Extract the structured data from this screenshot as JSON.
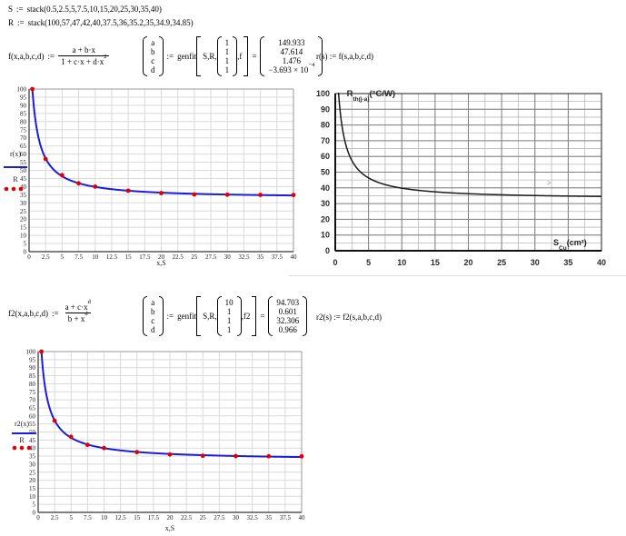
{
  "math": {
    "assign": ":=",
    "equals": "=",
    "s_def": {
      "lhs": "S",
      "rhs": "stack(0.5,2.5,5,7.5,10,15,20,25,30,35,40)"
    },
    "r_def": {
      "lhs": "R",
      "rhs": "stack(100,57,47,42,40,37.5,36,35.2,35,34.9,34.85)"
    },
    "f_def": {
      "lhs": "f(x,a,b,c,d)",
      "num": "a + b·x",
      "den_main": "1 + c·x + d·x",
      "den_sup": "2"
    },
    "fit1": {
      "vars": [
        "a",
        "b",
        "c",
        "d"
      ],
      "fn": "genfit",
      "args_pre": "S,R,",
      "guess": [
        "1",
        "1",
        "1",
        "1"
      ],
      "args_post": ",f",
      "result": [
        "149.933",
        "47.614",
        "1.476"
      ],
      "result_sci": {
        "m": "−3.693 × 10",
        "e": "−4"
      }
    },
    "rs_def": "r(s) := f(s,a,b,c,d)",
    "f2_def": {
      "lhs": "f2(x,a,b,c,d)",
      "num_main": "a + c·x",
      "num_sup": "d",
      "den_main": "b + x",
      "den_sup": "d"
    },
    "fit2": {
      "vars": [
        "a",
        "b",
        "c",
        "d"
      ],
      "fn": "genfit",
      "args_pre": "S,R,",
      "guess": [
        "10",
        "1",
        "1",
        "1"
      ],
      "args_post": ",f2",
      "result": [
        "94.703",
        "0.601",
        "32.306",
        "0.966"
      ]
    },
    "r2s_def": "r2(s) := f2(s,a,b,c,d)"
  },
  "chart_data": [
    {
      "id": "fit-plot-1",
      "type": "line+scatter",
      "x": [
        0.5,
        2.5,
        5,
        7.5,
        10,
        15,
        20,
        25,
        30,
        35,
        40
      ],
      "scatter_y": [
        100,
        57,
        47,
        42,
        40,
        37.5,
        36,
        35.2,
        35,
        34.9,
        34.85
      ],
      "curve": {
        "kind": "rational_quad",
        "a": 149.933,
        "b": 47.614,
        "c": 1.476,
        "d": -0.0003693,
        "formula": "r(x) = (a + b·x)/(1 + c·x + d·x²)"
      },
      "legend": [
        "r(x)",
        "R"
      ],
      "xlabel": "x,S",
      "xlim": [
        0,
        40
      ],
      "ylim": [
        0,
        100
      ],
      "x_tick_step": 2.5,
      "y_tick_step": 5,
      "grid": true,
      "line_color": "#1c1ce0",
      "marker_color": "#e00000"
    },
    {
      "id": "datasheet-plot",
      "type": "line",
      "title": {
        "main": "R",
        "sub": "th(j-a)",
        "unit": "(°C/W)"
      },
      "xlabel": {
        "main": "S",
        "sub": "Cu",
        "unit": "(cm²)"
      },
      "curve": {
        "kind": "rational_quad",
        "a": 149.933,
        "b": 47.614,
        "c": 1.476,
        "d": -0.0003693
      },
      "xlim": [
        0,
        40
      ],
      "ylim": [
        0,
        100
      ],
      "x_label_step": 5,
      "y_label_step": 10,
      "x_minor_step": 2.5,
      "y_minor_step": 5,
      "grid": true,
      "line_color": "#1a1a1a"
    },
    {
      "id": "fit-plot-2",
      "type": "line+scatter",
      "x": [
        0.5,
        2.5,
        5,
        7.5,
        10,
        15,
        20,
        25,
        30,
        35,
        40
      ],
      "scatter_y": [
        100,
        57,
        47,
        42,
        40,
        37.5,
        36,
        35.2,
        35,
        34.9,
        34.85
      ],
      "curve": {
        "kind": "power_ratio",
        "a": 94.703,
        "b": 0.601,
        "c": 32.306,
        "d": 0.966,
        "formula": "r2(x) = (a + c·x^d)/(b + x^d)"
      },
      "legend": [
        "r2(x)",
        "R"
      ],
      "xlabel": "x,S",
      "xlim": [
        0,
        40
      ],
      "ylim": [
        0,
        100
      ],
      "x_tick_step": 2.5,
      "y_tick_step": 5,
      "grid": true,
      "line_color": "#1c1ce0",
      "marker_color": "#e00000"
    }
  ],
  "artifact": {
    "cursor_mark": ">"
  }
}
